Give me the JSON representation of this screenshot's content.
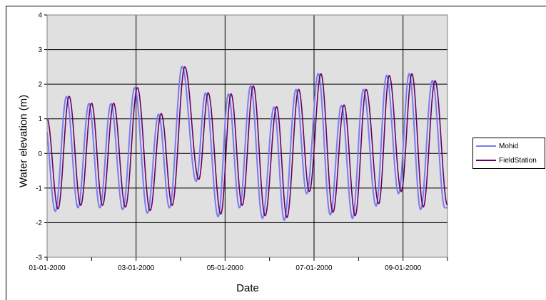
{
  "chart_data": {
    "type": "line",
    "xlabel": "Date",
    "ylabel": "Water elevation (m)",
    "ylim": [
      -3,
      4
    ],
    "yticks": [
      -3,
      -2,
      -1,
      0,
      1,
      2,
      3,
      4
    ],
    "xticks": [
      "01-01-2000",
      "03-01-2000",
      "05-01-2000",
      "07-01-2000",
      "09-01-2000"
    ],
    "grid": true,
    "legend_position": "right",
    "plot_background": "#e0e0e0",
    "extrema": [
      {
        "t": 0.0,
        "v": 1.0
      },
      {
        "t": 0.245,
        "v": -1.6
      },
      {
        "t": 0.495,
        "v": 1.65
      },
      {
        "t": 0.755,
        "v": -1.5
      },
      {
        "t": 1.0,
        "v": 1.45
      },
      {
        "t": 1.245,
        "v": -1.5
      },
      {
        "t": 1.495,
        "v": 1.45
      },
      {
        "t": 1.76,
        "v": -1.55
      },
      {
        "t": 2.03,
        "v": 1.9
      },
      {
        "t": 2.315,
        "v": -1.65
      },
      {
        "t": 2.565,
        "v": 1.15
      },
      {
        "t": 2.81,
        "v": -1.5
      },
      {
        "t": 3.095,
        "v": 2.5
      },
      {
        "t": 3.41,
        "v": -0.75
      },
      {
        "t": 3.62,
        "v": 1.75
      },
      {
        "t": 3.905,
        "v": -1.75
      },
      {
        "t": 4.135,
        "v": 1.72
      },
      {
        "t": 4.385,
        "v": -1.5
      },
      {
        "t": 4.635,
        "v": 1.95
      },
      {
        "t": 4.9,
        "v": -1.8
      },
      {
        "t": 5.16,
        "v": 1.35
      },
      {
        "t": 5.39,
        "v": -1.85
      },
      {
        "t": 5.655,
        "v": 1.85
      },
      {
        "t": 5.895,
        "v": -1.1
      },
      {
        "t": 6.155,
        "v": 2.3
      },
      {
        "t": 6.425,
        "v": -1.7
      },
      {
        "t": 6.675,
        "v": 1.4
      },
      {
        "t": 6.925,
        "v": -1.8
      },
      {
        "t": 7.17,
        "v": 1.85
      },
      {
        "t": 7.455,
        "v": -1.45
      },
      {
        "t": 7.69,
        "v": 2.25
      },
      {
        "t": 7.96,
        "v": -1.1
      },
      {
        "t": 8.2,
        "v": 2.3
      },
      {
        "t": 8.455,
        "v": -1.55
      },
      {
        "t": 8.72,
        "v": 2.1
      },
      {
        "t": 9.0,
        "v": -1.5
      }
    ],
    "series": [
      {
        "name": "Mohid",
        "color": "#7b7bf0",
        "offset": 0.06,
        "dv": -0.04
      },
      {
        "name": "FieldStation",
        "color": "#660066",
        "offset": 0.0,
        "dv": 0.0
      }
    ]
  }
}
